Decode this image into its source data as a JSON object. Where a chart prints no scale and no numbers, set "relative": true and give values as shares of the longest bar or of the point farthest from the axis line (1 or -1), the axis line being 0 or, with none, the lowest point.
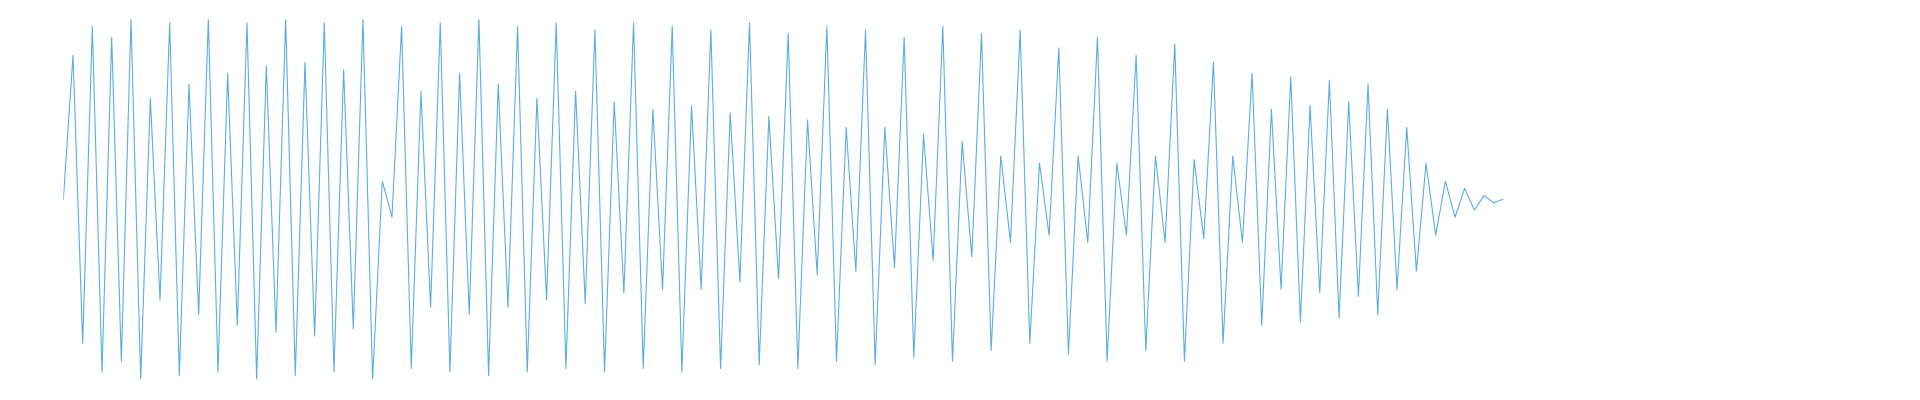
{
  "chart_data": {
    "type": "line",
    "relative": true,
    "legend": false,
    "marker": "none",
    "line_style": "solid",
    "categories": [
      null,
      null,
      null,
      null,
      null,
      null,
      null,
      null,
      null,
      null,
      null,
      null,
      null,
      null,
      null,
      null,
      null,
      null,
      null,
      null,
      null,
      null,
      null,
      null,
      null,
      null,
      null,
      null,
      null,
      null,
      null,
      null,
      null,
      null,
      null,
      null,
      null,
      null,
      null,
      null,
      null,
      null,
      null,
      null,
      null,
      null,
      null,
      null,
      null,
      null,
      null,
      null,
      null,
      null,
      null,
      null,
      null,
      null,
      null,
      null,
      null,
      null,
      null,
      null,
      null,
      null,
      null,
      null,
      null,
      null,
      null,
      null,
      null,
      null,
      null,
      null,
      null,
      null,
      null,
      null,
      null,
      null,
      null,
      null,
      null,
      null,
      null,
      null,
      null,
      null,
      null,
      null,
      null,
      null,
      null,
      null,
      null,
      null,
      null,
      null,
      null,
      null,
      null,
      null,
      null,
      null,
      null,
      null,
      null,
      null,
      null,
      null,
      null,
      null,
      null,
      null,
      null,
      null,
      null,
      null,
      null,
      null,
      null,
      null,
      null,
      null,
      null,
      null,
      null,
      null,
      null,
      null,
      null,
      null,
      null,
      null,
      null,
      null,
      null,
      null,
      null,
      null,
      null,
      null,
      null,
      null,
      null,
      null,
      null,
      null
    ],
    "series": [
      {
        "color": "#5dade2",
        "values": [
          0.5,
          0.9,
          0.1,
          0.98,
          0.02,
          0.95,
          0.05,
          1.0,
          0.0,
          0.78,
          0.22,
          0.99,
          0.01,
          0.82,
          0.18,
          1.0,
          0.02,
          0.85,
          0.15,
          0.99,
          0.0,
          0.87,
          0.13,
          1.0,
          0.01,
          0.88,
          0.12,
          0.99,
          0.02,
          0.86,
          0.14,
          1.0,
          0.0,
          0.55,
          0.45,
          0.98,
          0.03,
          0.8,
          0.2,
          0.99,
          0.02,
          0.85,
          0.18,
          1.0,
          0.01,
          0.82,
          0.2,
          0.98,
          0.02,
          0.78,
          0.22,
          0.99,
          0.03,
          0.8,
          0.21,
          0.97,
          0.02,
          0.77,
          0.24,
          0.99,
          0.03,
          0.75,
          0.25,
          0.98,
          0.02,
          0.76,
          0.25,
          0.97,
          0.03,
          0.74,
          0.27,
          0.99,
          0.04,
          0.73,
          0.28,
          0.96,
          0.03,
          0.72,
          0.29,
          0.98,
          0.05,
          0.7,
          0.3,
          0.97,
          0.04,
          0.7,
          0.31,
          0.95,
          0.06,
          0.68,
          0.33,
          0.98,
          0.05,
          0.66,
          0.34,
          0.96,
          0.08,
          0.62,
          0.38,
          0.97,
          0.1,
          0.6,
          0.4,
          0.92,
          0.07,
          0.62,
          0.38,
          0.95,
          0.05,
          0.6,
          0.4,
          0.9,
          0.08,
          0.62,
          0.38,
          0.93,
          0.05,
          0.61,
          0.39,
          0.88,
          0.1,
          0.62,
          0.38,
          0.85,
          0.15,
          0.75,
          0.25,
          0.84,
          0.16,
          0.76,
          0.24,
          0.83,
          0.17,
          0.77,
          0.23,
          0.82,
          0.18,
          0.75,
          0.25,
          0.7,
          0.3,
          0.6,
          0.4,
          0.55,
          0.45,
          0.53,
          0.47,
          0.51,
          0.49,
          0.5
        ]
      }
    ]
  }
}
